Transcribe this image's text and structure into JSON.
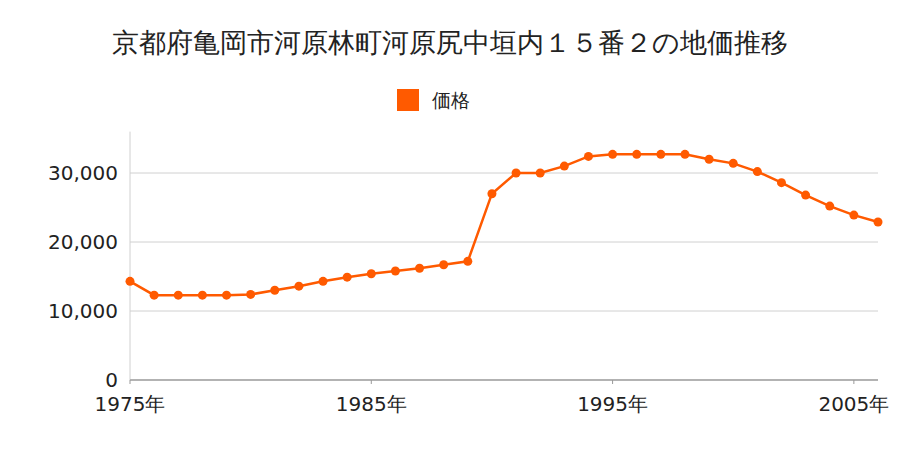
{
  "chart_data": {
    "type": "line",
    "title": "京都府亀岡市河原林町河原尻中垣内１５番２の地価推移",
    "x": [
      1975,
      1976,
      1977,
      1978,
      1979,
      1980,
      1981,
      1982,
      1983,
      1984,
      1985,
      1986,
      1987,
      1988,
      1989,
      1990,
      1991,
      1992,
      1993,
      1994,
      1995,
      1996,
      1997,
      1998,
      1999,
      2000,
      2001,
      2002,
      2003,
      2004,
      2005,
      2006
    ],
    "series": [
      {
        "name": "価格",
        "color": "#ff5a00",
        "marker": "circle",
        "line_style": "solid",
        "values": [
          14300,
          12300,
          12300,
          12300,
          12300,
          12400,
          13000,
          13600,
          14300,
          14900,
          15400,
          15800,
          16200,
          16700,
          17200,
          27000,
          30000,
          30000,
          31000,
          32400,
          32700,
          32700,
          32700,
          32700,
          32000,
          31400,
          30200,
          28600,
          26800,
          25200,
          23900,
          22900
        ]
      }
    ],
    "xlim": [
      1975,
      2006
    ],
    "xticks": [
      {
        "value": 1975,
        "label": "1975年"
      },
      {
        "value": 1985,
        "label": "1985年"
      },
      {
        "value": 1995,
        "label": "1995年"
      },
      {
        "value": 2005,
        "label": "2005年"
      }
    ],
    "ylim": [
      0,
      36000
    ],
    "yticks": [
      0,
      {
        "value": 10000,
        "label": "10,000"
      },
      {
        "value": 20000,
        "label": "20,000"
      },
      {
        "value": 30000,
        "label": "30,000"
      }
    ],
    "grid": true,
    "legend": "top"
  }
}
